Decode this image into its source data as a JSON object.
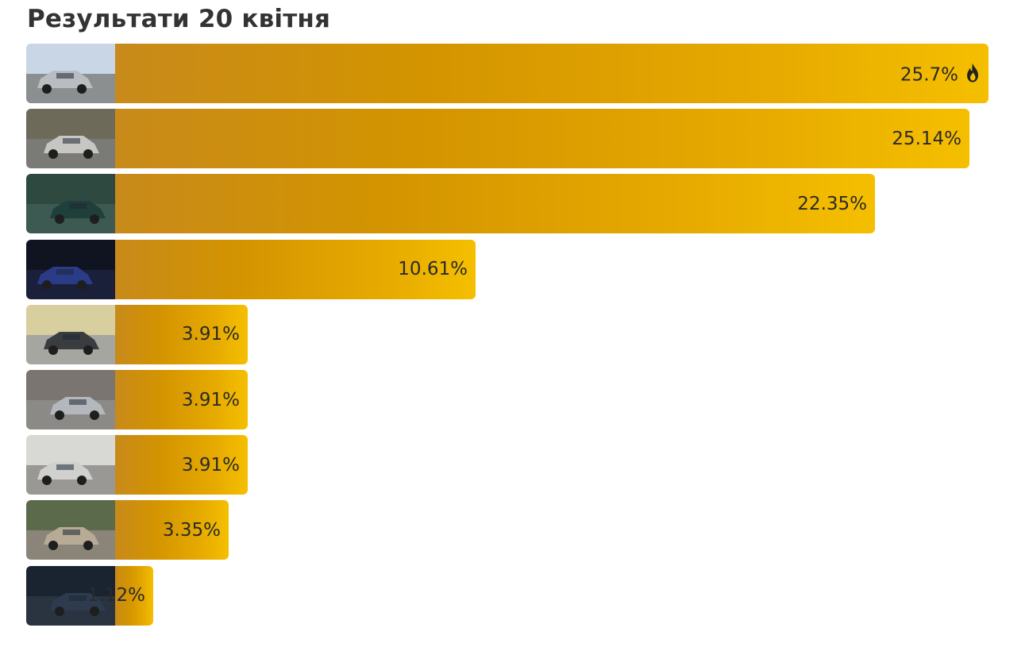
{
  "title": "Результати 20 квітня",
  "chart_data": {
    "type": "bar",
    "orientation": "horizontal",
    "title": "Результати 20 квітня",
    "unit": "%",
    "xlim": [
      0,
      25.7
    ],
    "categories": [
      "car-photo-1",
      "car-photo-2",
      "car-photo-3",
      "car-photo-4",
      "car-photo-5",
      "car-photo-6",
      "car-photo-7",
      "car-photo-8",
      "car-photo-9"
    ],
    "values": [
      25.7,
      25.14,
      22.35,
      10.61,
      3.91,
      3.91,
      3.91,
      3.35,
      1.12
    ],
    "labels": [
      "25.7%",
      "25.14%",
      "22.35%",
      "10.61%",
      "3.91%",
      "3.91%",
      "3.91%",
      "3.35%",
      "1.12%"
    ],
    "leader_icon": "fire-icon",
    "bar_gradient": [
      "#c88a1a",
      "#d39400",
      "#e6aa00",
      "#f5bf00"
    ],
    "thumbnail_palettes": [
      {
        "sky": "#c9d6e6",
        "ground": "#8c8f8f",
        "car": "#b9bcc0"
      },
      {
        "sky": "#6e6a5a",
        "ground": "#7a7a76",
        "car": "#c8c6c2"
      },
      {
        "sky": "#2e4a40",
        "ground": "#3c5a52",
        "car": "#1f3f3a"
      },
      {
        "sky": "#101320",
        "ground": "#1a1f3a",
        "car": "#2a3b88"
      },
      {
        "sky": "#d8cfa0",
        "ground": "#a6a6a0",
        "car": "#3a3d40"
      },
      {
        "sky": "#7a7570",
        "ground": "#8c8a86",
        "car": "#b4b8bc"
      },
      {
        "sky": "#d8d8d4",
        "ground": "#9a9894",
        "car": "#d0d0ce"
      },
      {
        "sky": "#5a6a4a",
        "ground": "#8a8578",
        "car": "#b8ab95"
      },
      {
        "sky": "#1a2430",
        "ground": "#2a3440",
        "car": "#2e3a4e"
      }
    ]
  }
}
